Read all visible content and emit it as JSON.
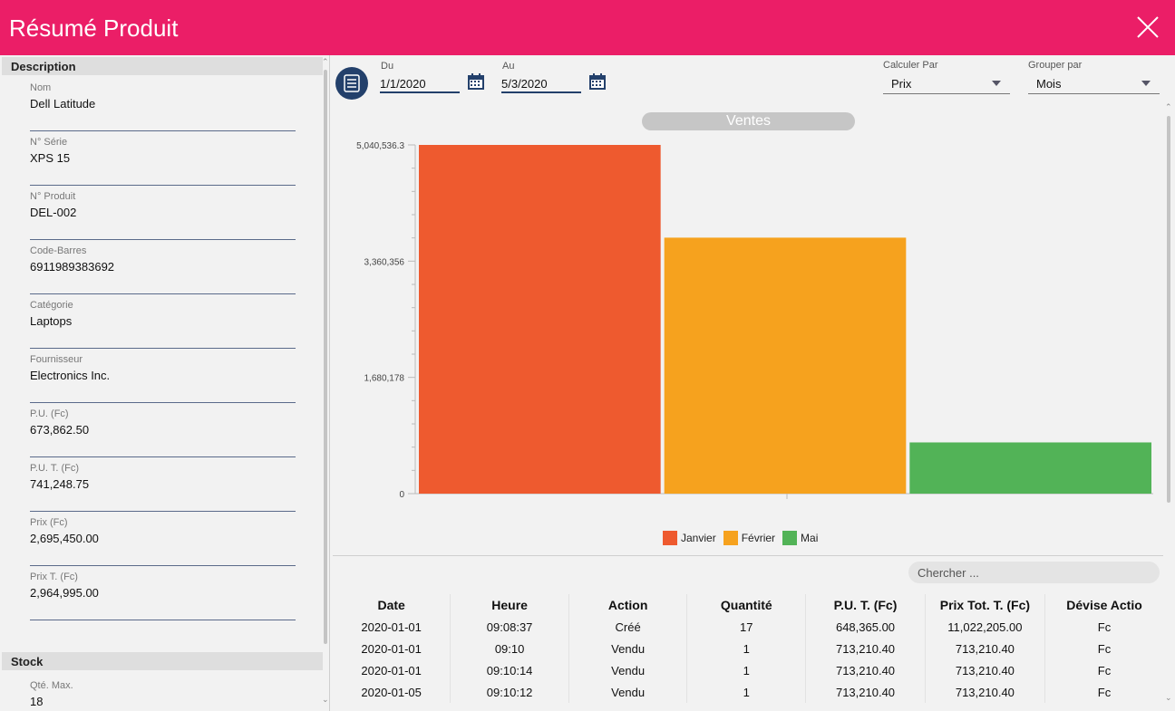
{
  "window": {
    "title": "Résumé Produit"
  },
  "description": {
    "header": "Description",
    "fields": [
      {
        "label": "Nom",
        "value": "Dell Latitude"
      },
      {
        "label": "N° Série",
        "value": "XPS 15"
      },
      {
        "label": "N° Produit",
        "value": "DEL-002"
      },
      {
        "label": "Code-Barres",
        "value": "6911989383692"
      },
      {
        "label": "Catégorie",
        "value": "Laptops"
      },
      {
        "label": "Fournisseur",
        "value": "Electronics Inc."
      },
      {
        "label": "P.U. (Fc)",
        "value": "673,862.50"
      },
      {
        "label": "P.U. T. (Fc)",
        "value": "741,248.75"
      },
      {
        "label": "Prix (Fc)",
        "value": "2,695,450.00"
      },
      {
        "label": "Prix T. (Fc)",
        "value": "2,964,995.00"
      }
    ]
  },
  "stock": {
    "header": "Stock",
    "fields": [
      {
        "label": "Qté. Max.",
        "value": "18"
      }
    ]
  },
  "filters": {
    "from_label": "Du",
    "from_value": "1/1/2020",
    "to_label": "Au",
    "to_value": "5/3/2020",
    "calc_label": "Calculer Par",
    "calc_value": "Prix",
    "group_label": "Grouper par",
    "group_value": "Mois"
  },
  "chart_data": {
    "type": "bar",
    "title": "Ventes",
    "categories": [
      "Janvier",
      "Février",
      "Mai"
    ],
    "values": [
      5040536.3,
      3700000,
      740000
    ],
    "colors": [
      "#ee5a2f",
      "#f6a21e",
      "#52b357"
    ],
    "yticks": [
      "5,040,536.3",
      "3,360,356",
      "1,680,178",
      "0"
    ],
    "ylim": [
      0,
      5040536.3
    ],
    "legend_position": "bottom",
    "grid": false
  },
  "search": {
    "placeholder": "Chercher ..."
  },
  "table": {
    "headers": [
      "Date",
      "Heure",
      "Action",
      "Quantité",
      "P.U. T. (Fc)",
      "Prix Tot. T. (Fc)",
      "Dévise Actio"
    ],
    "rows": [
      [
        "2020-01-01",
        "09:08:37",
        "Créé",
        "17",
        "648,365.00",
        "11,022,205.00",
        "Fc"
      ],
      [
        "2020-01-01",
        "09:10",
        "Vendu",
        "1",
        "713,210.40",
        "713,210.40",
        "Fc"
      ],
      [
        "2020-01-01",
        "09:10:14",
        "Vendu",
        "1",
        "713,210.40",
        "713,210.40",
        "Fc"
      ],
      [
        "2020-01-05",
        "09:10:12",
        "Vendu",
        "1",
        "713,210.40",
        "713,210.40",
        "Fc"
      ]
    ]
  },
  "icons": {
    "close": "close-icon",
    "menu": "list-menu-icon",
    "calendar": "calendar-icon",
    "dropdown": "caret-down-icon"
  },
  "colors": {
    "accent": "#eb1e67",
    "navy": "#23406b"
  }
}
